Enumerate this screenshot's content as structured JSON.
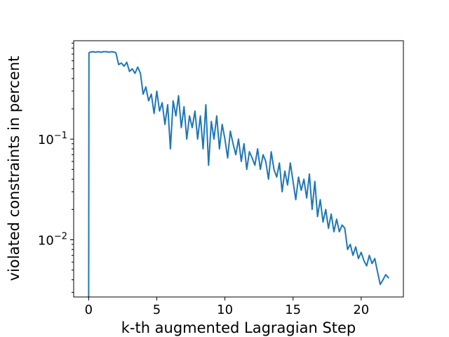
{
  "chart_data": {
    "type": "line",
    "title": "",
    "xlabel": "k-th augmented Lagragian Step",
    "ylabel": "violated constraints in percent",
    "xlim": [
      -1.1,
      23.1
    ],
    "ylim": [
      0.0027,
      0.95
    ],
    "yscale": "log",
    "grid": false,
    "x_ticks": [
      0,
      5,
      10,
      15,
      20
    ],
    "x_tick_labels": [
      "0",
      "5",
      "10",
      "15",
      "20"
    ],
    "y_ticks": [
      0.01,
      0.1
    ],
    "y_tick_labels": [
      "10^-2",
      "10^-1"
    ],
    "series": [
      {
        "color": "#1f77b4",
        "x": [
          0.0,
          0.02,
          0.1,
          0.3,
          0.5,
          0.7,
          0.9,
          1.1,
          1.3,
          1.5,
          1.7,
          1.9,
          2.0,
          2.2,
          2.4,
          2.6,
          2.8,
          3.0,
          3.2,
          3.4,
          3.6,
          3.8,
          4.0,
          4.2,
          4.4,
          4.6,
          4.8,
          5.0,
          5.2,
          5.4,
          5.6,
          5.8,
          6.0,
          6.2,
          6.4,
          6.6,
          6.8,
          7.0,
          7.2,
          7.4,
          7.6,
          7.8,
          8.0,
          8.2,
          8.4,
          8.6,
          8.8,
          9.0,
          9.2,
          9.4,
          9.6,
          9.8,
          10.0,
          10.2,
          10.4,
          10.6,
          10.8,
          11.0,
          11.2,
          11.4,
          11.6,
          11.8,
          12.0,
          12.2,
          12.4,
          12.6,
          12.8,
          13.0,
          13.2,
          13.4,
          13.6,
          13.8,
          14.0,
          14.2,
          14.4,
          14.6,
          14.8,
          15.0,
          15.2,
          15.4,
          15.6,
          15.8,
          16.0,
          16.2,
          16.4,
          16.6,
          16.8,
          17.0,
          17.2,
          17.4,
          17.6,
          17.8,
          18.0,
          18.2,
          18.4,
          18.6,
          18.8,
          19.0,
          19.2,
          19.4,
          19.6,
          19.8,
          20.0,
          20.2,
          20.4,
          20.6,
          20.8,
          21.0,
          21.2,
          21.4,
          21.6,
          21.8,
          22.0
        ],
        "y": [
          0.0027,
          0.72,
          0.73,
          0.74,
          0.73,
          0.74,
          0.73,
          0.74,
          0.74,
          0.73,
          0.74,
          0.73,
          0.72,
          0.55,
          0.57,
          0.53,
          0.58,
          0.47,
          0.5,
          0.45,
          0.52,
          0.45,
          0.28,
          0.33,
          0.24,
          0.28,
          0.18,
          0.3,
          0.19,
          0.23,
          0.14,
          0.22,
          0.08,
          0.24,
          0.17,
          0.27,
          0.13,
          0.21,
          0.1,
          0.17,
          0.13,
          0.19,
          0.1,
          0.17,
          0.08,
          0.22,
          0.055,
          0.15,
          0.1,
          0.17,
          0.08,
          0.14,
          0.1,
          0.065,
          0.12,
          0.09,
          0.07,
          0.1,
          0.06,
          0.09,
          0.05,
          0.075,
          0.065,
          0.055,
          0.08,
          0.05,
          0.07,
          0.06,
          0.04,
          0.075,
          0.05,
          0.042,
          0.058,
          0.03,
          0.048,
          0.035,
          0.058,
          0.038,
          0.025,
          0.042,
          0.031,
          0.04,
          0.026,
          0.045,
          0.02,
          0.038,
          0.017,
          0.025,
          0.015,
          0.02,
          0.013,
          0.018,
          0.012,
          0.016,
          0.012,
          0.014,
          0.013,
          0.008,
          0.009,
          0.007,
          0.0085,
          0.0065,
          0.0075,
          0.0062,
          0.0055,
          0.007,
          0.0058,
          0.0065,
          0.0048,
          0.0036,
          0.004,
          0.0045,
          0.0042
        ]
      }
    ]
  }
}
